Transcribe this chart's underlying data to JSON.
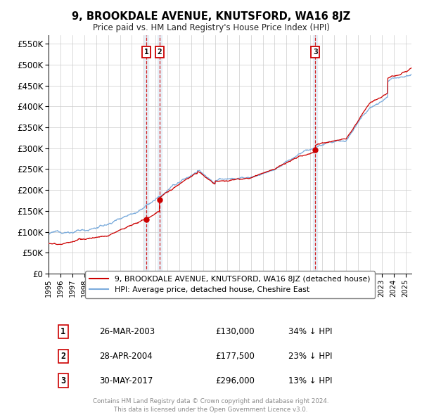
{
  "title": "9, BROOKDALE AVENUE, KNUTSFORD, WA16 8JZ",
  "subtitle": "Price paid vs. HM Land Registry's House Price Index (HPI)",
  "ylabel_ticks": [
    "£0",
    "£50K",
    "£100K",
    "£150K",
    "£200K",
    "£250K",
    "£300K",
    "£350K",
    "£400K",
    "£450K",
    "£500K",
    "£550K"
  ],
  "ytick_vals": [
    0,
    50000,
    100000,
    150000,
    200000,
    250000,
    300000,
    350000,
    400000,
    450000,
    500000,
    550000
  ],
  "ylim": [
    0,
    570000
  ],
  "xlim_start": 1995.0,
  "xlim_end": 2025.5,
  "red_color": "#cc0000",
  "blue_color": "#7aabdc",
  "transaction_dates": [
    2003.23,
    2004.33,
    2017.42
  ],
  "transaction_prices": [
    130000,
    177500,
    296000
  ],
  "transaction_labels": [
    "1",
    "2",
    "3"
  ],
  "legend_entries": [
    "9, BROOKDALE AVENUE, KNUTSFORD, WA16 8JZ (detached house)",
    "HPI: Average price, detached house, Cheshire East"
  ],
  "table_data": [
    [
      "1",
      "26-MAR-2003",
      "£130,000",
      "34% ↓ HPI"
    ],
    [
      "2",
      "28-APR-2004",
      "£177,500",
      "23% ↓ HPI"
    ],
    [
      "3",
      "30-MAY-2017",
      "£296,000",
      "13% ↓ HPI"
    ]
  ],
  "footnote": "Contains HM Land Registry data © Crown copyright and database right 2024.\nThis data is licensed under the Open Government Licence v3.0.",
  "background_color": "#ffffff",
  "grid_color": "#cccccc"
}
